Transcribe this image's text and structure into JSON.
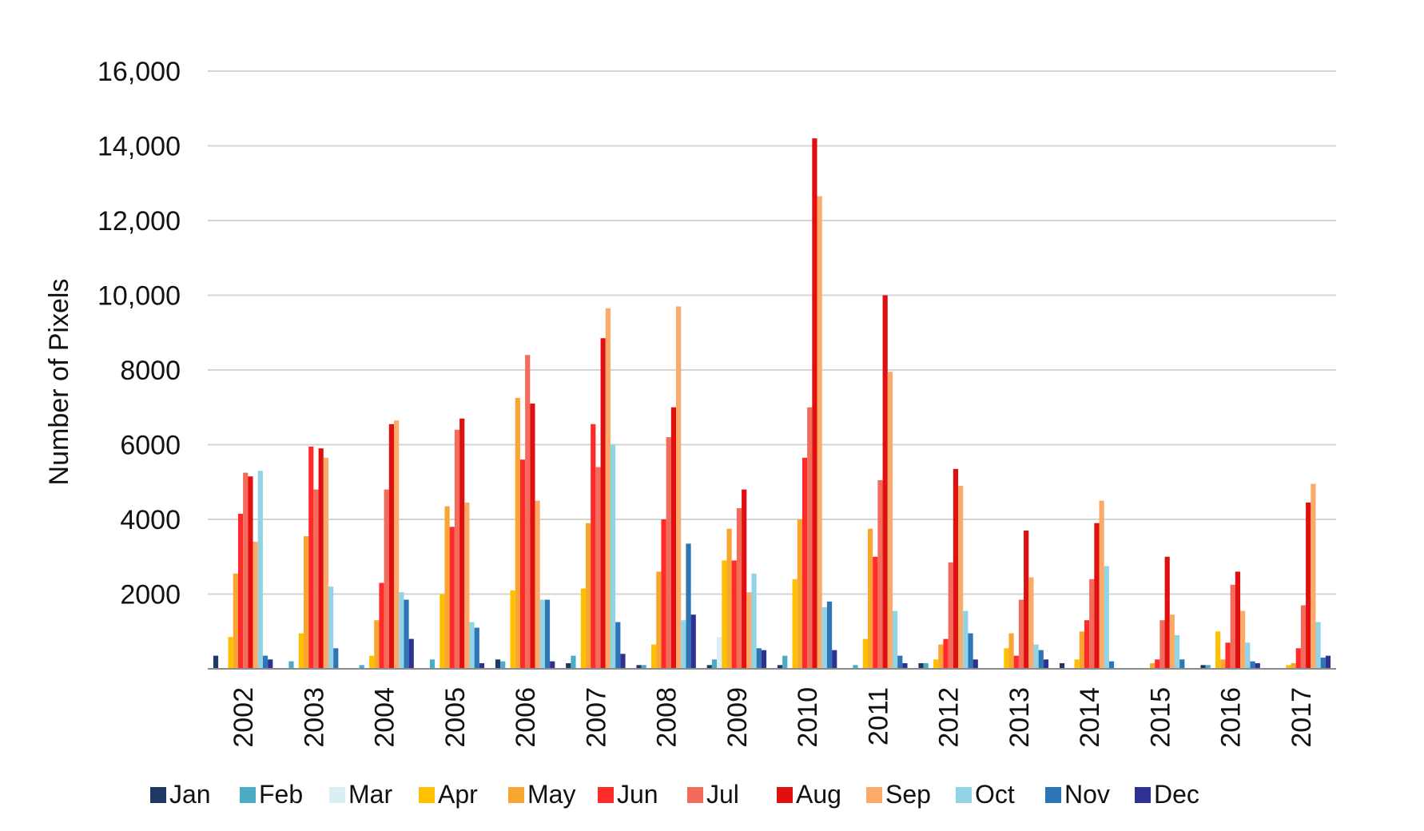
{
  "chart_data": {
    "type": "bar",
    "title": "",
    "xlabel": "",
    "ylabel": "Number of Pixels",
    "ylim": [
      0,
      16000
    ],
    "yticks": [
      0,
      2000,
      4000,
      6000,
      8000,
      10000,
      12000,
      14000,
      16000
    ],
    "ytick_labels": [
      "",
      "2000",
      "4000",
      "6000",
      "8000",
      "10,000",
      "12,000",
      "14,000",
      "16,000"
    ],
    "grid": true,
    "legend_position": "bottom",
    "categories": [
      "2002",
      "2003",
      "2004",
      "2005",
      "2006",
      "2007",
      "2008",
      "2009",
      "2010",
      "2011",
      "2012",
      "2013",
      "2014",
      "2015",
      "2016",
      "2017"
    ],
    "series": [
      {
        "name": "Jan",
        "color": "#1f3864",
        "values": [
          350,
          0,
          0,
          0,
          250,
          150,
          100,
          100,
          100,
          0,
          150,
          0,
          150,
          0,
          100,
          0
        ]
      },
      {
        "name": "Feb",
        "color": "#4bacc6",
        "values": [
          0,
          200,
          100,
          250,
          200,
          350,
          100,
          250,
          350,
          100,
          150,
          0,
          0,
          0,
          100,
          0
        ]
      },
      {
        "name": "Mar",
        "color": "#daeef3",
        "values": [
          0,
          0,
          0,
          0,
          0,
          0,
          0,
          850,
          0,
          0,
          0,
          0,
          0,
          0,
          0,
          0
        ]
      },
      {
        "name": "Apr",
        "color": "#ffc000",
        "values": [
          850,
          950,
          350,
          2000,
          2100,
          2150,
          650,
          2900,
          2400,
          800,
          250,
          550,
          250,
          0,
          1000,
          100
        ]
      },
      {
        "name": "May",
        "color": "#f9a532",
        "values": [
          2550,
          3550,
          1300,
          4350,
          7250,
          3900,
          2600,
          3750,
          4000,
          3750,
          650,
          950,
          1000,
          150,
          250,
          150
        ]
      },
      {
        "name": "Jun",
        "color": "#ff2a2a",
        "values": [
          4150,
          5950,
          2300,
          3800,
          5600,
          6550,
          4000,
          2900,
          5650,
          3000,
          800,
          350,
          1300,
          250,
          700,
          550
        ]
      },
      {
        "name": "Jul",
        "color": "#f26b5b",
        "values": [
          5250,
          4800,
          4800,
          6400,
          8400,
          5400,
          6200,
          4300,
          7000,
          5050,
          2850,
          1850,
          2400,
          1300,
          2250,
          1700
        ]
      },
      {
        "name": "Aug",
        "color": "#e01010",
        "values": [
          5150,
          5900,
          6550,
          6700,
          7100,
          8850,
          7000,
          4800,
          14200,
          10000,
          5350,
          3700,
          3900,
          3000,
          2600,
          4450
        ]
      },
      {
        "name": "Sep",
        "color": "#fbaa6a",
        "values": [
          3400,
          5650,
          6650,
          4450,
          4500,
          9650,
          9700,
          2050,
          12650,
          7950,
          4900,
          2450,
          4500,
          1450,
          1550,
          4950
        ]
      },
      {
        "name": "Oct",
        "color": "#92d4e6",
        "values": [
          5300,
          2200,
          2050,
          1250,
          1850,
          6000,
          1300,
          2550,
          1650,
          1550,
          1550,
          650,
          2750,
          900,
          700,
          1250
        ]
      },
      {
        "name": "Nov",
        "color": "#2e75b6",
        "values": [
          350,
          550,
          1850,
          1100,
          1850,
          1250,
          3350,
          550,
          1800,
          350,
          950,
          500,
          200,
          250,
          200,
          300
        ]
      },
      {
        "name": "Dec",
        "color": "#2e3192",
        "values": [
          250,
          0,
          800,
          150,
          200,
          400,
          1450,
          500,
          500,
          150,
          250,
          250,
          0,
          0,
          150,
          350
        ]
      }
    ]
  }
}
